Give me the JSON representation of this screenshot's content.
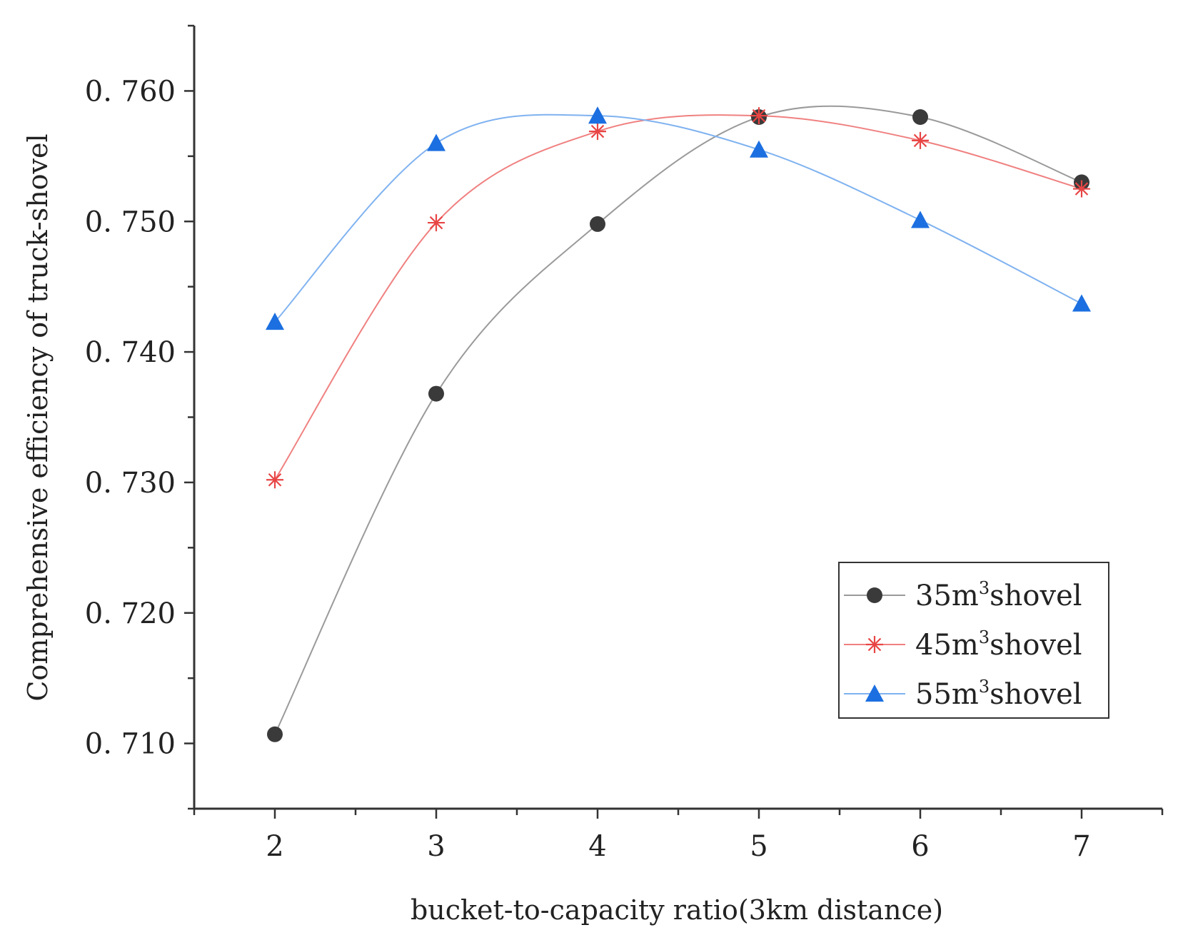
{
  "chart_data": {
    "type": "line",
    "title": "",
    "xlabel": "bucket-to-capacity ratio(3km distance)",
    "ylabel": "Comprehensive efficiency of truck-shovel",
    "x": [
      2,
      3,
      4,
      5,
      6,
      7
    ],
    "x_ticks": [
      "2",
      "3",
      "4",
      "5",
      "6",
      "7"
    ],
    "xlim": [
      1.5,
      7.5
    ],
    "ylim": [
      0.705,
      0.765
    ],
    "y_ticks": [
      0.71,
      0.72,
      0.73,
      0.74,
      0.75,
      0.76
    ],
    "y_tick_labels": [
      "0. 710",
      "0. 720",
      "0. 730",
      "0. 740",
      "0. 750",
      "0. 760"
    ],
    "grid": false,
    "legend_position": "bottom-right",
    "series": [
      {
        "name": "35m³shovel",
        "legend_prefix": "35m",
        "legend_sup": "3",
        "legend_suffix": "shovel",
        "marker": "circle",
        "line_color": "#9a9a9a",
        "marker_color": "#3a3a3a",
        "values": [
          0.7107,
          0.7368,
          0.7498,
          0.758,
          0.758,
          0.753
        ]
      },
      {
        "name": "45m³shovel",
        "legend_prefix": "45m",
        "legend_sup": "3",
        "legend_suffix": "shovel",
        "marker": "asterisk",
        "line_color": "#f08080",
        "marker_color": "#e84545",
        "values": [
          0.7302,
          0.7499,
          0.7569,
          0.7581,
          0.7562,
          0.7525
        ]
      },
      {
        "name": "55m³shovel",
        "legend_prefix": "55m",
        "legend_sup": "3",
        "legend_suffix": "shovel",
        "marker": "triangle",
        "line_color": "#7fb2f0",
        "marker_color": "#1c6fe0",
        "values": [
          0.7423,
          0.756,
          0.7581,
          0.7555,
          0.7501,
          0.7437
        ]
      }
    ]
  }
}
